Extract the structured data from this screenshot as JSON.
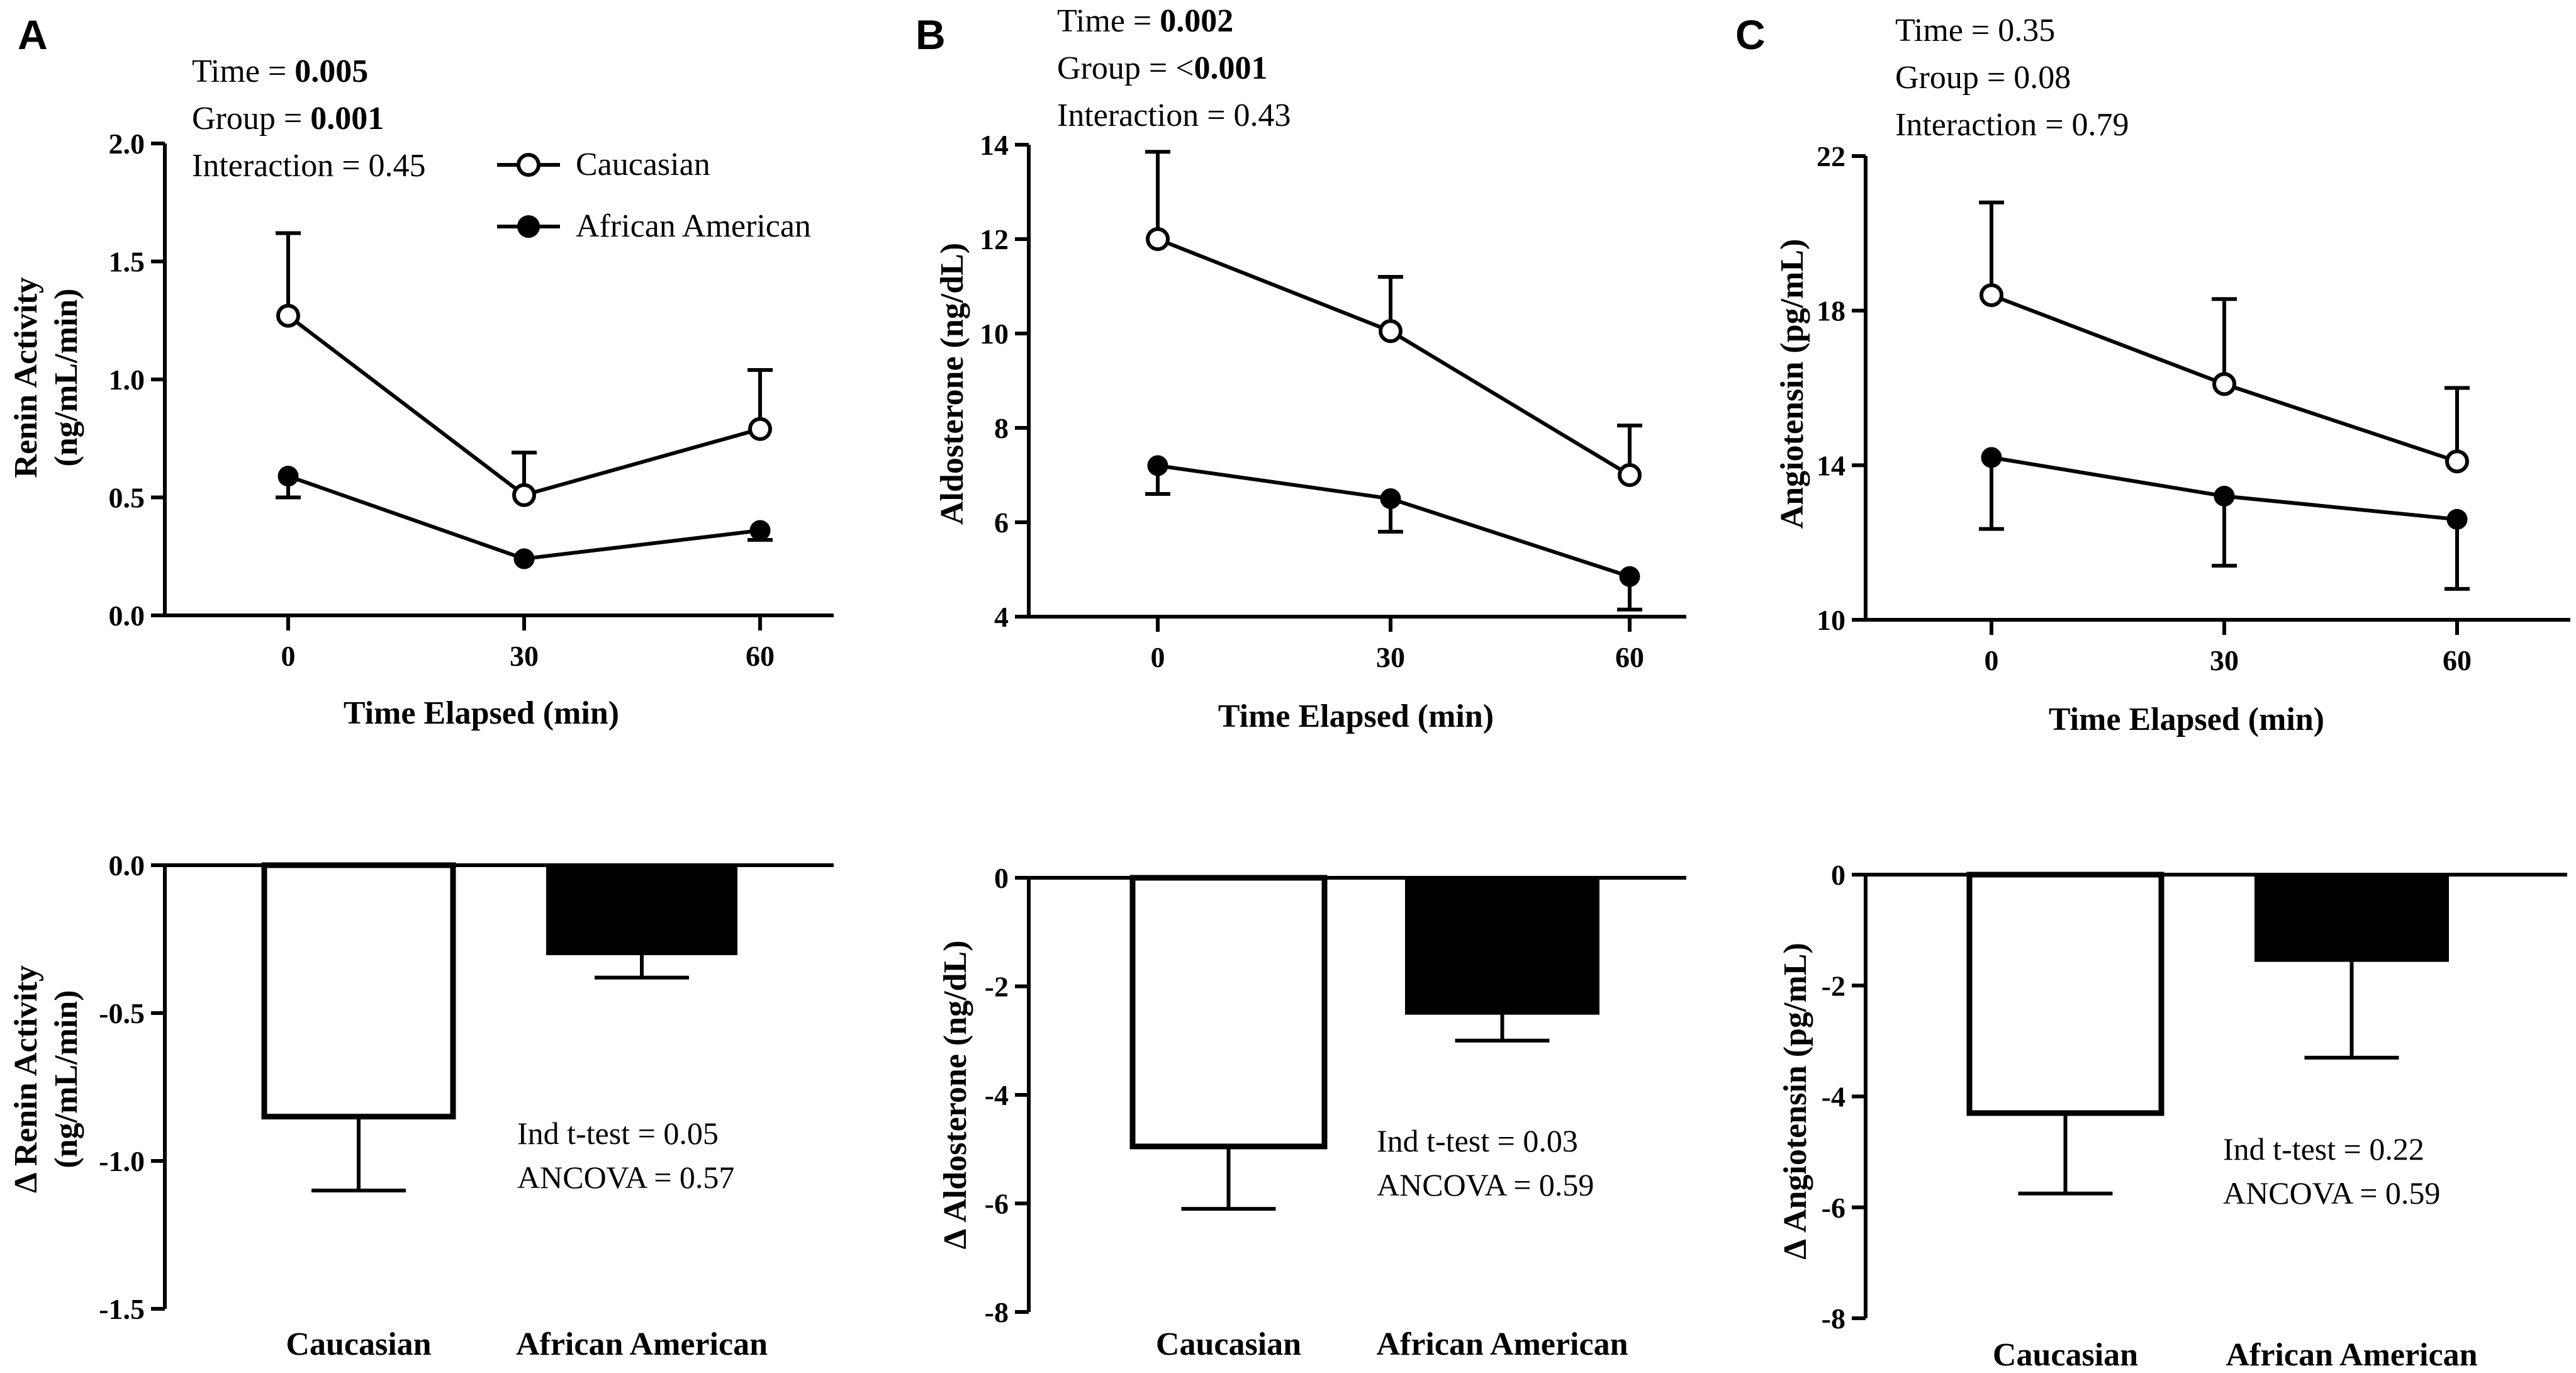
{
  "figure": {
    "legend": {
      "caucasian": "Caucasian",
      "african_american": "African American"
    }
  },
  "chart_data": [
    {
      "panel": "A",
      "type": "line",
      "title": "",
      "stats": {
        "time_label": "Time = ",
        "time_value": "0.005",
        "group_label": "Group = ",
        "group_value": "0.001",
        "interaction": "Interaction = 0.45"
      },
      "xlabel": "Time Elapsed (min)",
      "ylabel": [
        "Renin Activity",
        "(ng/mL/min)"
      ],
      "x": [
        0,
        30,
        60
      ],
      "x_ticks": [
        "0",
        "30",
        "60"
      ],
      "ylim": [
        0,
        2.0
      ],
      "y_ticks": [
        "0.0",
        "0.5",
        "1.0",
        "1.5",
        "2.0"
      ],
      "series": [
        {
          "name": "Caucasian",
          "marker": "open-circle",
          "values": [
            1.27,
            0.51,
            0.79
          ],
          "err": [
            0.35,
            0.18,
            0.25
          ],
          "err_dir": "up"
        },
        {
          "name": "African American",
          "marker": "filled-circle",
          "values": [
            0.59,
            0.24,
            0.36
          ],
          "err": [
            0.09,
            0.0,
            0.04
          ],
          "err_dir": "down"
        }
      ]
    },
    {
      "panel": "B",
      "type": "line",
      "stats": {
        "time_label": "Time = ",
        "time_value": "0.002",
        "group_label": "Group = <",
        "group_value": "0.001",
        "interaction": "Interaction = 0.43"
      },
      "xlabel": "Time Elapsed (min)",
      "ylabel": [
        "Aldosterone (ng/dL)"
      ],
      "x": [
        0,
        30,
        60
      ],
      "x_ticks": [
        "0",
        "30",
        "60"
      ],
      "ylim": [
        4,
        14
      ],
      "y_ticks": [
        "4",
        "6",
        "8",
        "10",
        "12",
        "14"
      ],
      "series": [
        {
          "name": "Caucasian",
          "marker": "open-circle",
          "values": [
            12.0,
            10.05,
            7.0
          ],
          "err": [
            1.85,
            1.15,
            1.05
          ],
          "err_dir": "up"
        },
        {
          "name": "African American",
          "marker": "filled-circle",
          "values": [
            7.2,
            6.5,
            4.85
          ],
          "err": [
            0.6,
            0.7,
            0.7
          ],
          "err_dir": "down"
        }
      ]
    },
    {
      "panel": "C",
      "type": "line",
      "stats": {
        "time_line": "Time = 0.35",
        "group_line": "Group = 0.08",
        "interaction": "Interaction = 0.79"
      },
      "xlabel": "Time Elapsed (min)",
      "ylabel": [
        "Angiotensin (pg/mL)"
      ],
      "x": [
        0,
        30,
        60
      ],
      "x_ticks": [
        "0",
        "30",
        "60"
      ],
      "ylim": [
        10,
        22
      ],
      "y_ticks": [
        "10",
        "14",
        "18",
        "22"
      ],
      "series": [
        {
          "name": "Caucasian",
          "marker": "open-circle",
          "values": [
            18.4,
            16.1,
            14.1
          ],
          "err": [
            2.4,
            2.2,
            1.9
          ],
          "err_dir": "up"
        },
        {
          "name": "African American",
          "marker": "filled-circle",
          "values": [
            14.2,
            13.2,
            12.6
          ],
          "err": [
            1.85,
            1.8,
            1.8
          ],
          "err_dir": "down"
        }
      ]
    },
    {
      "panel": "A-delta",
      "type": "bar",
      "categories": [
        "Caucasian",
        "African American"
      ],
      "values": [
        -0.85,
        -0.3
      ],
      "err": [
        0.25,
        0.08
      ],
      "ylabel": [
        "Δ Renin Activity",
        "(ng/mL/min)"
      ],
      "ylim": [
        -1.5,
        0
      ],
      "y_ticks": [
        "0.0",
        "-0.5",
        "-1.0",
        "-1.5"
      ],
      "annotation": [
        "Ind t-test = 0.05",
        "ANCOVA = 0.57"
      ]
    },
    {
      "panel": "B-delta",
      "type": "bar",
      "categories": [
        "Caucasian",
        "African American"
      ],
      "values": [
        -4.95,
        -2.5
      ],
      "err": [
        1.15,
        0.5
      ],
      "ylabel": [
        "Δ Aldosterone (ng/dL)"
      ],
      "ylim": [
        -8,
        0
      ],
      "y_ticks": [
        "0",
        "-2",
        "-4",
        "-6",
        "-8"
      ],
      "annotation": [
        "Ind t-test = 0.03",
        "ANCOVA = 0.59"
      ]
    },
    {
      "panel": "C-delta",
      "type": "bar",
      "categories": [
        "Caucasian",
        "African American"
      ],
      "values": [
        -4.3,
        -1.55
      ],
      "err": [
        1.45,
        1.75
      ],
      "ylabel": [
        "Δ Angiotensin (pg/mL)"
      ],
      "ylim": [
        -8,
        0
      ],
      "y_ticks": [
        "0",
        "-2",
        "-4",
        "-6",
        "-8"
      ],
      "annotation": [
        "Ind t-test = 0.22",
        "ANCOVA = 0.59"
      ]
    }
  ]
}
